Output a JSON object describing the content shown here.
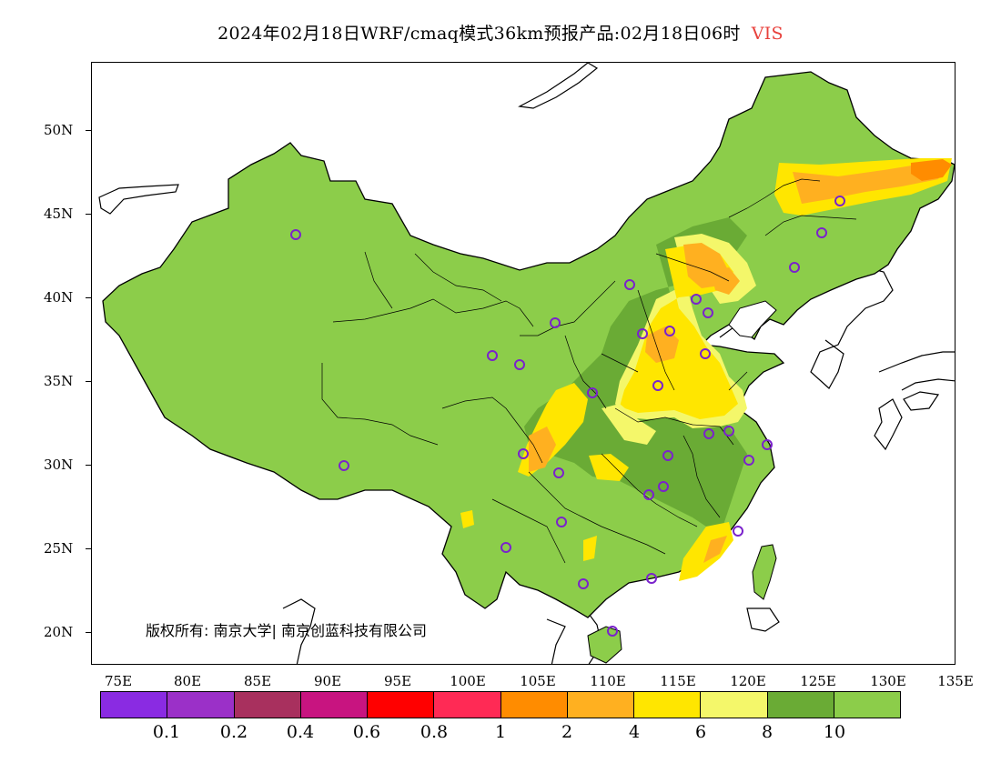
{
  "title": {
    "main": "2024年02月18日WRF/cmaq模式36km预报产品:02月18日06时",
    "variable": "VIS"
  },
  "axes": {
    "lat_labels": [
      "50N",
      "45N",
      "40N",
      "35N",
      "30N",
      "25N",
      "20N"
    ],
    "lon_labels": [
      "75E",
      "80E",
      "85E",
      "90E",
      "95E",
      "100E",
      "105E",
      "110E",
      "115E",
      "120E",
      "125E",
      "130E",
      "135E"
    ]
  },
  "copyright": "版权所有: 南京大学| 南京创蓝科技有限公司",
  "legend": {
    "colors": [
      "#8a2be2",
      "#9b30c8",
      "#a8305e",
      "#c81480",
      "#ff0000",
      "#ff2a55",
      "#ff8c00",
      "#ffb020",
      "#ffe600",
      "#f4f76a",
      "#6aab35",
      "#8ccd4a"
    ],
    "labels": [
      "0.1",
      "0.2",
      "0.4",
      "0.6",
      "0.8",
      "1",
      "2",
      "4",
      "6",
      "8",
      "10"
    ]
  },
  "colors": {
    "land_green": "#8ccd4a",
    "dark_green": "#6aab35",
    "station_marker": "#7a22cc",
    "title_variable": "#e8413c"
  }
}
